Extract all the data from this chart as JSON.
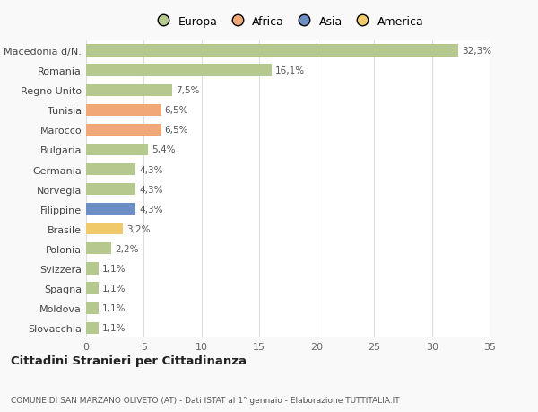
{
  "countries": [
    "Slovacchia",
    "Moldova",
    "Spagna",
    "Svizzera",
    "Polonia",
    "Brasile",
    "Filippine",
    "Norvegia",
    "Germania",
    "Bulgaria",
    "Marocco",
    "Tunisia",
    "Regno Unito",
    "Romania",
    "Macedonia d/N."
  ],
  "values": [
    1.1,
    1.1,
    1.1,
    1.1,
    2.2,
    3.2,
    4.3,
    4.3,
    4.3,
    5.4,
    6.5,
    6.5,
    7.5,
    16.1,
    32.3
  ],
  "labels": [
    "1,1%",
    "1,1%",
    "1,1%",
    "1,1%",
    "2,2%",
    "3,2%",
    "4,3%",
    "4,3%",
    "4,3%",
    "5,4%",
    "6,5%",
    "6,5%",
    "7,5%",
    "16,1%",
    "32,3%"
  ],
  "colors": [
    "#b5c98e",
    "#b5c98e",
    "#b5c98e",
    "#b5c98e",
    "#b5c98e",
    "#f0c96a",
    "#6b8ec4",
    "#b5c98e",
    "#b5c98e",
    "#b5c98e",
    "#f0a878",
    "#f0a878",
    "#b5c98e",
    "#b5c98e",
    "#b5c98e"
  ],
  "legend_labels": [
    "Europa",
    "Africa",
    "Asia",
    "America"
  ],
  "legend_colors": [
    "#b5c98e",
    "#f0a878",
    "#6b8ec4",
    "#f0c96a"
  ],
  "xlim": [
    0,
    35
  ],
  "xticks": [
    0,
    5,
    10,
    15,
    20,
    25,
    30,
    35
  ],
  "title": "Cittadini Stranieri per Cittadinanza",
  "subtitle": "COMUNE DI SAN MARZANO OLIVETO (AT) - Dati ISTAT al 1° gennaio - Elaborazione TUTTITALIA.IT",
  "background_color": "#f9f9f9",
  "plot_bg_color": "#ffffff",
  "grid_color": "#dddddd",
  "bar_height": 0.6
}
